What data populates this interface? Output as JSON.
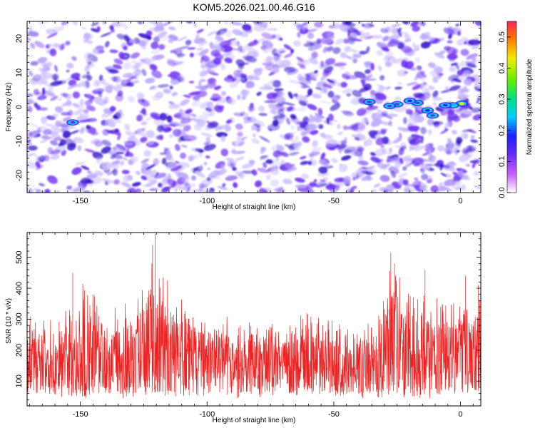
{
  "title": "KOM5.2026.021.00.46.G16",
  "colors": {
    "snr_line": "#ee2222",
    "spec_base": "#ffffff",
    "spec_low": "#b9a6ff",
    "spec_mid": "#6a2cf0",
    "spec_high": "#3010c8"
  },
  "chart_data": [
    {
      "type": "heatmap",
      "name": "spectrogram",
      "xlabel": "Height of straight line (km)",
      "ylabel": "Frequency (Hz)",
      "xlim": [
        -171,
        8
      ],
      "ylim": [
        -25,
        25
      ],
      "x_ticks": [
        -150,
        -100,
        -50,
        0
      ],
      "y_ticks": [
        -20,
        -10,
        0,
        10,
        20
      ],
      "colorbar": {
        "label": "Normalized spectral amplitude",
        "range": [
          0.0,
          0.55
        ],
        "ticks": [
          0.0,
          0.1,
          0.2,
          0.3,
          0.4,
          0.5
        ]
      },
      "hotspots": [
        {
          "x": 0.5,
          "y": 1.0,
          "value": 0.45
        },
        {
          "x": -3,
          "y": 0.5,
          "value": 0.3
        },
        {
          "x": -6,
          "y": 0.5,
          "value": 0.22
        },
        {
          "x": -11,
          "y": -2.5,
          "value": 0.16
        },
        {
          "x": -13,
          "y": -1,
          "value": 0.2
        },
        {
          "x": -17,
          "y": 1.2,
          "value": 0.18
        },
        {
          "x": -20,
          "y": 1.8,
          "value": 0.2
        },
        {
          "x": -25,
          "y": 0.8,
          "value": 0.15
        },
        {
          "x": -28,
          "y": 0.3,
          "value": 0.14
        },
        {
          "x": -36,
          "y": 1.5,
          "value": 0.18
        },
        {
          "x": -153,
          "y": -4.5,
          "value": 0.15
        }
      ]
    },
    {
      "type": "line",
      "name": "snr",
      "xlabel": "Height of straight line (km)",
      "ylabel": "SNR (10 * v/v)",
      "xlim": [
        -171,
        8
      ],
      "ylim": [
        20,
        580
      ],
      "x_ticks": [
        -150,
        -100,
        -50,
        0
      ],
      "y_ticks": [
        100,
        200,
        300,
        400,
        500
      ],
      "envelope_km": [
        -171,
        -155,
        -150,
        -140,
        -130,
        -122,
        -118,
        -110,
        -100,
        -85,
        -70,
        -60,
        -45,
        -35,
        -28,
        -20,
        -10,
        0,
        8
      ],
      "envelope_peak": [
        320,
        330,
        440,
        360,
        350,
        500,
        450,
        370,
        320,
        300,
        280,
        330,
        280,
        300,
        470,
        400,
        380,
        360,
        370
      ],
      "spikes": [
        {
          "x": -120.5,
          "y": 575
        },
        {
          "x": -121.5,
          "y": 540
        },
        {
          "x": -153,
          "y": 450
        },
        {
          "x": -27.5,
          "y": 515
        },
        {
          "x": -26,
          "y": 480
        },
        {
          "x": -14,
          "y": 460
        },
        {
          "x": 2,
          "y": 440
        },
        {
          "x": 7,
          "y": 410
        }
      ]
    }
  ]
}
